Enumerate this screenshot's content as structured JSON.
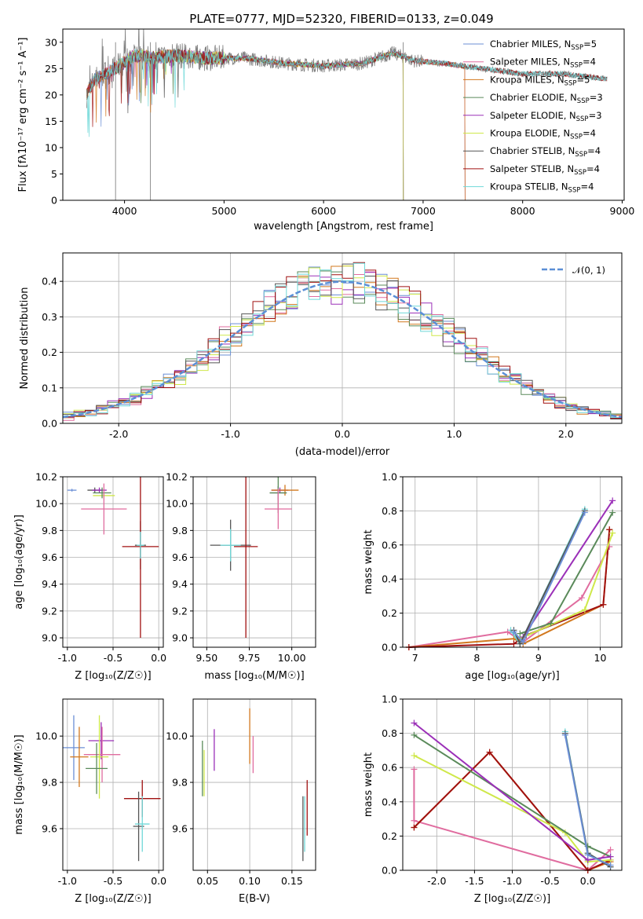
{
  "figure": {
    "title": "PLATE=0777, MJD=52320, FIBERID=0133, z=0.049"
  },
  "chart_data": [
    {
      "id": "spectrum",
      "type": "line",
      "title": "PLATE=0777, MJD=52320, FIBERID=0133, z=0.049",
      "xlabel": "wavelength [Angstrom, rest frame]",
      "ylabel": "Flux [fλ10⁻¹⁷ erg cm⁻² s⁻¹ A⁻¹]",
      "xlim": [
        3380,
        9020
      ],
      "ylim": [
        0,
        32.5
      ],
      "xticks": [
        4000,
        5000,
        6000,
        7000,
        8000,
        9000
      ],
      "yticks": [
        0,
        5,
        10,
        15,
        20,
        25,
        30
      ],
      "grid": false,
      "legend_position": "top-right",
      "series": [
        {
          "name": "Chabrier MILES, N_SSP=5",
          "color": "#6b8fd6",
          "x_range": [
            3620,
            7420
          ]
        },
        {
          "name": "Salpeter MILES, N_SSP=4",
          "color": "#e06c9f",
          "x_range": [
            3620,
            7420
          ]
        },
        {
          "name": "Kroupa MILES, N_SSP=5",
          "color": "#d2781e",
          "x_range": [
            3620,
            7420
          ]
        },
        {
          "name": "Chabrier ELODIE, N_SSP=3",
          "color": "#5a8a5a",
          "x_range": [
            3900,
            6800
          ]
        },
        {
          "name": "Salpeter ELODIE, N_SSP=3",
          "color": "#9b30b8",
          "x_range": [
            3900,
            6800
          ]
        },
        {
          "name": "Kroupa ELODIE, N_SSP=4",
          "color": "#cfe84a",
          "x_range": [
            3900,
            6800
          ]
        },
        {
          "name": "Chabrier STELIB, N_SSP=4",
          "color": "#555555",
          "x_range": [
            3620,
            8850
          ]
        },
        {
          "name": "Salpeter STELIB, N_SSP=4",
          "color": "#a01010",
          "x_range": [
            3620,
            8850
          ]
        },
        {
          "name": "Kroupa STELIB, N_SSP=4",
          "color": "#6fd8d8",
          "x_range": [
            3620,
            8850
          ]
        }
      ],
      "data_series_color": "#808080",
      "data_x_range": [
        3620,
        8850
      ],
      "continuum_points": [
        [
          3620,
          20
        ],
        [
          3700,
          23
        ],
        [
          3900,
          25
        ],
        [
          4100,
          27.5
        ],
        [
          4300,
          27
        ],
        [
          4500,
          27.5
        ],
        [
          4800,
          27
        ],
        [
          5200,
          27
        ],
        [
          5600,
          26
        ],
        [
          6000,
          25.5
        ],
        [
          6400,
          26
        ],
        [
          6700,
          28
        ],
        [
          6900,
          26.5
        ],
        [
          7200,
          26
        ],
        [
          7600,
          25
        ],
        [
          8000,
          24
        ],
        [
          8400,
          24
        ],
        [
          8850,
          23
        ]
      ]
    },
    {
      "id": "residuals",
      "type": "line",
      "xlabel": "(data-model)/error",
      "ylabel": "Normed distribution",
      "xlim": [
        -2.5,
        2.5
      ],
      "ylim": [
        0,
        0.48
      ],
      "xticks": [
        -2,
        -1,
        0,
        1,
        2
      ],
      "yticks": [
        0.0,
        0.1,
        0.2,
        0.3,
        0.4
      ],
      "grid": true,
      "legend_position": "top-right",
      "legend": [
        {
          "name": "𝒩(0, 1)",
          "color": "#5b8fd6",
          "dashed": true
        }
      ],
      "hist_colors": [
        "#6b8fd6",
        "#e06c9f",
        "#d2781e",
        "#5a8a5a",
        "#9b30b8",
        "#cfe84a",
        "#555555",
        "#a01010",
        "#6fd8d8"
      ]
    },
    {
      "id": "age-vs-z",
      "type": "scatter",
      "xlabel": "Z [log₁₀(Z/Z☉)]",
      "ylabel": "age  [log₁₀(age/yr)]",
      "xlim": [
        -1.05,
        0.05
      ],
      "ylim": [
        8.93,
        10.2
      ],
      "xticks": [
        -1.0,
        -0.5,
        0.0
      ],
      "yticks": [
        9.0,
        9.2,
        9.4,
        9.6,
        9.8,
        10.0,
        10.2
      ],
      "grid": true,
      "points": [
        {
          "x": -0.95,
          "y": 10.1,
          "xerr": 0.05,
          "yerr": 0.01,
          "color": "#6b8fd6"
        },
        {
          "x": -0.7,
          "y": 10.1,
          "xerr": 0.08,
          "yerr": 0.02,
          "color": "#555555"
        },
        {
          "x": -0.65,
          "y": 10.1,
          "xerr": 0.08,
          "yerr": 0.02,
          "color": "#9b30b8"
        },
        {
          "x": -0.6,
          "y": 10.06,
          "xerr": 0.12,
          "yerr": 0.02,
          "color": "#cfe84a"
        },
        {
          "x": -0.62,
          "y": 10.08,
          "xerr": 0.1,
          "yerr": 0.04,
          "color": "#5a8a5a"
        },
        {
          "x": -0.6,
          "y": 9.96,
          "xerr": 0.25,
          "yerr": 0.19,
          "color": "#e06c9f"
        },
        {
          "x": -0.2,
          "y": 9.69,
          "xerr": 0.06,
          "yerr": 0.18,
          "color": "#555555"
        },
        {
          "x": -0.2,
          "y": 9.68,
          "xerr": 0.2,
          "yerr": 0.68,
          "color": "#a01010"
        },
        {
          "x": -0.2,
          "y": 9.69,
          "xerr": 0.04,
          "yerr": 0.1,
          "color": "#6fd8d8"
        }
      ]
    },
    {
      "id": "age-vs-mass",
      "type": "scatter",
      "xlabel": "mass [log₁₀(M/M☉)]",
      "ylabel": "",
      "xlim": [
        9.42,
        10.14
      ],
      "ylim": [
        8.93,
        10.2
      ],
      "xticks": [
        9.5,
        9.75,
        10.0
      ],
      "yticks": [
        9.0,
        9.2,
        9.4,
        9.6,
        9.8,
        10.0,
        10.2
      ],
      "grid": true,
      "points": [
        {
          "x": 9.93,
          "y": 10.1,
          "xerr": 0.05,
          "yerr": 0.02,
          "color": "#9b30b8"
        },
        {
          "x": 9.96,
          "y": 10.1,
          "xerr": 0.08,
          "yerr": 0.04,
          "color": "#d2781e"
        },
        {
          "x": 9.92,
          "y": 10.08,
          "xerr": 0.05,
          "yerr": 0.05,
          "color": "#555555"
        },
        {
          "x": 9.92,
          "y": 10.08,
          "xerr": 0.05,
          "yerr": 0.15,
          "color": "#5a8a5a"
        },
        {
          "x": 9.92,
          "y": 9.96,
          "xerr": 0.08,
          "yerr": 0.15,
          "color": "#e06c9f"
        },
        {
          "x": 9.64,
          "y": 9.69,
          "xerr": 0.12,
          "yerr": 0.19,
          "color": "#555555"
        },
        {
          "x": 9.73,
          "y": 9.68,
          "xerr": 0.07,
          "yerr": 0.68,
          "color": "#a01010"
        },
        {
          "x": 9.64,
          "y": 9.69,
          "xerr": 0.06,
          "yerr": 0.12,
          "color": "#6fd8d8"
        }
      ]
    },
    {
      "id": "massweight-vs-age",
      "type": "line",
      "xlabel": "age  [log₁₀(age/yr)]",
      "ylabel": "mass weight",
      "xlim": [
        6.8,
        10.35
      ],
      "ylim": [
        0,
        1.0
      ],
      "xticks": [
        7,
        8,
        9,
        10
      ],
      "yticks": [
        0.0,
        0.2,
        0.4,
        0.6,
        0.8,
        1.0
      ],
      "grid": true,
      "series": [
        {
          "color": "#e06c9f",
          "x": [
            6.9,
            8.5,
            8.75,
            9.7,
            10.15
          ],
          "y": [
            0.0,
            0.09,
            0.03,
            0.29,
            0.59
          ]
        },
        {
          "color": "#d2781e",
          "x": [
            6.9,
            8.6,
            8.75,
            10.05,
            10.15
          ],
          "y": [
            0.0,
            0.05,
            0.02,
            0.25,
            0.69
          ]
        },
        {
          "color": "#a01010",
          "x": [
            6.9,
            8.6,
            8.8,
            10.05,
            10.15
          ],
          "y": [
            0.0,
            0.02,
            0.07,
            0.25,
            0.69
          ]
        },
        {
          "color": "#cfe84a",
          "x": [
            8.7,
            9.75,
            10.2
          ],
          "y": [
            0.05,
            0.22,
            0.67
          ]
        },
        {
          "color": "#5a8a5a",
          "x": [
            8.7,
            9.2,
            10.2
          ],
          "y": [
            0.08,
            0.14,
            0.79
          ]
        },
        {
          "color": "#9b30b8",
          "x": [
            8.75,
            10.2
          ],
          "y": [
            0.06,
            0.86
          ]
        },
        {
          "color": "#6fd8d8",
          "x": [
            8.55,
            8.7,
            9.75
          ],
          "y": [
            0.1,
            0.02,
            0.81
          ]
        },
        {
          "color": "#555555",
          "x": [
            8.6,
            8.7,
            9.75
          ],
          "y": [
            0.1,
            0.02,
            0.8
          ]
        },
        {
          "color": "#6b8fd6",
          "x": [
            8.6,
            8.75,
            9.75
          ],
          "y": [
            0.09,
            0.03,
            0.79
          ]
        }
      ]
    },
    {
      "id": "mass-vs-z",
      "type": "scatter",
      "xlabel": "Z [log₁₀(Z/Z☉)]",
      "ylabel": "mass [log₁₀(M/M☉)]",
      "xlim": [
        -1.05,
        0.05
      ],
      "ylim": [
        9.42,
        10.16
      ],
      "xticks": [
        -1.0,
        -0.5,
        0.0
      ],
      "yticks": [
        9.6,
        9.8,
        10.0
      ],
      "grid": true,
      "points": [
        {
          "x": -0.93,
          "y": 9.95,
          "xerr": 0.12,
          "yerr": 0.14,
          "color": "#6b8fd6"
        },
        {
          "x": -0.87,
          "y": 9.91,
          "xerr": 0.1,
          "yerr": 0.13,
          "color": "#d2781e"
        },
        {
          "x": -0.63,
          "y": 9.98,
          "xerr": 0.14,
          "yerr": 0.08,
          "color": "#9b30b8"
        },
        {
          "x": -0.62,
          "y": 9.92,
          "xerr": 0.2,
          "yerr": 0.12,
          "color": "#e06c9f"
        },
        {
          "x": -0.65,
          "y": 9.91,
          "xerr": 0.1,
          "yerr": 0.18,
          "color": "#cfe84a"
        },
        {
          "x": -0.68,
          "y": 9.86,
          "xerr": 0.12,
          "yerr": 0.11,
          "color": "#5a8a5a"
        },
        {
          "x": -0.18,
          "y": 9.73,
          "xerr": 0.2,
          "yerr": 0.08,
          "color": "#a01010"
        },
        {
          "x": -0.22,
          "y": 9.61,
          "xerr": 0.06,
          "yerr": 0.15,
          "color": "#555555"
        },
        {
          "x": -0.18,
          "y": 9.62,
          "xerr": 0.08,
          "yerr": 0.12,
          "color": "#6fd8d8"
        }
      ]
    },
    {
      "id": "mass-vs-ebv",
      "type": "scatter",
      "xlabel": "E(B-V)",
      "ylabel": "",
      "xlim": [
        0.033,
        0.178
      ],
      "ylim": [
        9.42,
        10.16
      ],
      "xticks": [
        0.05,
        0.1,
        0.15
      ],
      "yticks": [
        9.6,
        9.8,
        10.0
      ],
      "grid": true,
      "points": [
        {
          "x": 0.044,
          "y": 9.86,
          "xerr": 0,
          "yerr": 0.12,
          "color": "#5a8a5a"
        },
        {
          "x": 0.046,
          "y": 9.84,
          "xerr": 0,
          "yerr": 0.1,
          "color": "#cfe84a"
        },
        {
          "x": 0.058,
          "y": 9.94,
          "xerr": 0,
          "yerr": 0.09,
          "color": "#9b30b8"
        },
        {
          "x": 0.1,
          "y": 10.0,
          "xerr": 0,
          "yerr": 0.12,
          "color": "#d2781e"
        },
        {
          "x": 0.104,
          "y": 9.92,
          "xerr": 0,
          "yerr": 0.08,
          "color": "#e06c9f"
        },
        {
          "x": 0.165,
          "y": 9.62,
          "xerr": 0,
          "yerr": 0.12,
          "color": "#6fd8d8"
        },
        {
          "x": 0.163,
          "y": 9.6,
          "xerr": 0,
          "yerr": 0.14,
          "color": "#555555"
        },
        {
          "x": 0.168,
          "y": 9.69,
          "xerr": 0,
          "yerr": 0.12,
          "color": "#a01010"
        }
      ]
    },
    {
      "id": "massweight-vs-z",
      "type": "line",
      "xlabel": "Z [log₁₀(Z/Z☉)]",
      "ylabel": "mass weight",
      "xlim": [
        -2.45,
        0.45
      ],
      "ylim": [
        0,
        1.0
      ],
      "xticks": [
        -2.0,
        -1.5,
        -1.0,
        -0.5,
        0.0
      ],
      "yticks": [
        0.0,
        0.2,
        0.4,
        0.6,
        0.8,
        1.0
      ],
      "grid": true,
      "series": [
        {
          "color": "#e06c9f",
          "x": [
            -2.3,
            -2.3,
            0.0,
            0.3
          ],
          "y": [
            0.59,
            0.29,
            0.0,
            0.12
          ]
        },
        {
          "color": "#d2781e",
          "x": [
            -2.3,
            -1.3,
            0.0,
            0.3
          ],
          "y": [
            0.25,
            0.69,
            0.0,
            0.05
          ]
        },
        {
          "color": "#a01010",
          "x": [
            -2.3,
            -1.3,
            0.0,
            0.3
          ],
          "y": [
            0.25,
            0.69,
            0.0,
            0.06
          ]
        },
        {
          "color": "#cfe84a",
          "x": [
            -2.3,
            -0.3,
            0.0,
            0.3
          ],
          "y": [
            0.67,
            0.22,
            0.05,
            0.06
          ]
        },
        {
          "color": "#5a8a5a",
          "x": [
            -2.3,
            0.0,
            0.3
          ],
          "y": [
            0.79,
            0.14,
            0.08
          ]
        },
        {
          "color": "#9b30b8",
          "x": [
            -2.3,
            0.0,
            0.3
          ],
          "y": [
            0.86,
            0.06,
            0.08
          ]
        },
        {
          "color": "#6fd8d8",
          "x": [
            -0.3,
            0.0,
            0.3
          ],
          "y": [
            0.81,
            0.1,
            0.02
          ]
        },
        {
          "color": "#555555",
          "x": [
            -0.3,
            0.0,
            0.3
          ],
          "y": [
            0.8,
            0.1,
            0.02
          ]
        },
        {
          "color": "#6b8fd6",
          "x": [
            -0.3,
            0.0,
            0.3
          ],
          "y": [
            0.79,
            0.09,
            0.03
          ]
        }
      ]
    }
  ]
}
